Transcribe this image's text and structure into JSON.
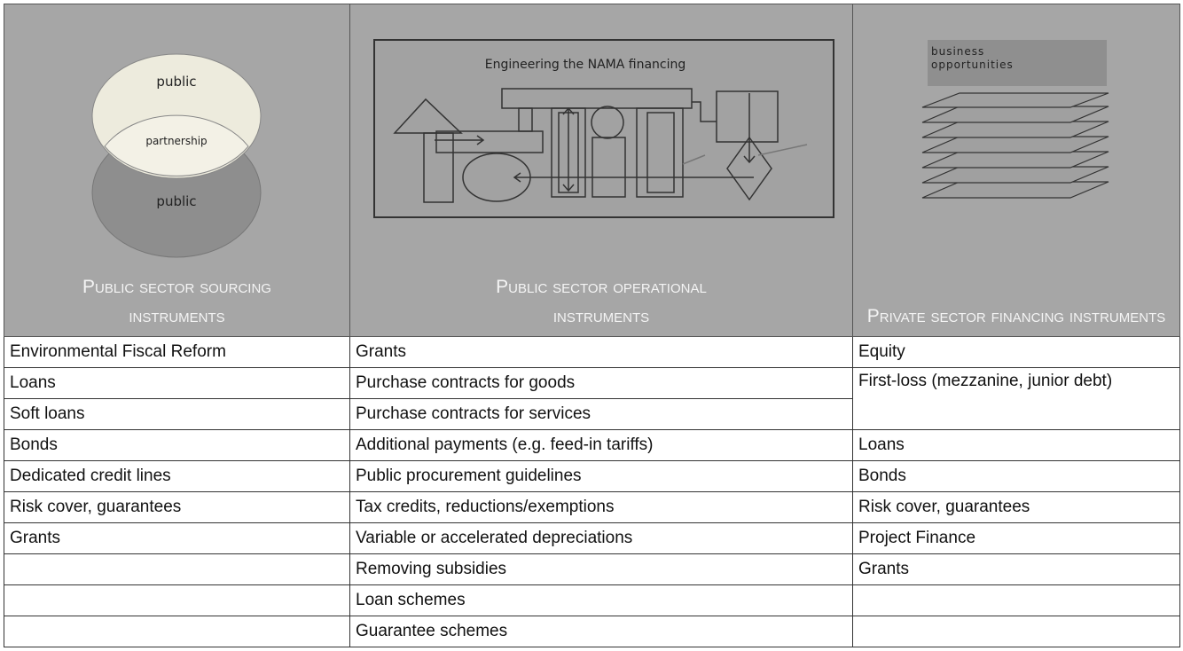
{
  "table": {
    "columns": [
      {
        "header": "Public sector sourcing instruments",
        "diagram": {
          "top": "public",
          "overlap": "partnership",
          "bottom": "public"
        },
        "items": [
          "Environmental Fiscal Reform",
          "Loans",
          "Soft loans",
          "Bonds",
          "Dedicated credit lines",
          "Risk cover, guarantees",
          "Grants"
        ]
      },
      {
        "header": "Public sector operational instruments",
        "diagram": {
          "title": "Engineering the NAMA financing"
        },
        "items": [
          "Grants",
          "Purchase contracts for goods",
          "Purchase contracts for services",
          "Additional payments (e.g. feed-in tariffs)",
          "Public procurement guidelines",
          "Tax credits, reductions/exemptions",
          "Variable or accelerated depreciations",
          "Removing subsidies",
          "Loan schemes",
          "Guarantee schemes"
        ]
      },
      {
        "header": "Private sector financing instruments",
        "diagram": {
          "title": "business opportunities"
        },
        "items": [
          "Equity",
          "First-loss (mezzanine, junior debt)",
          "Loans",
          "Bonds",
          "Risk cover, guarantees",
          "Project Finance",
          "Grants"
        ]
      }
    ]
  }
}
